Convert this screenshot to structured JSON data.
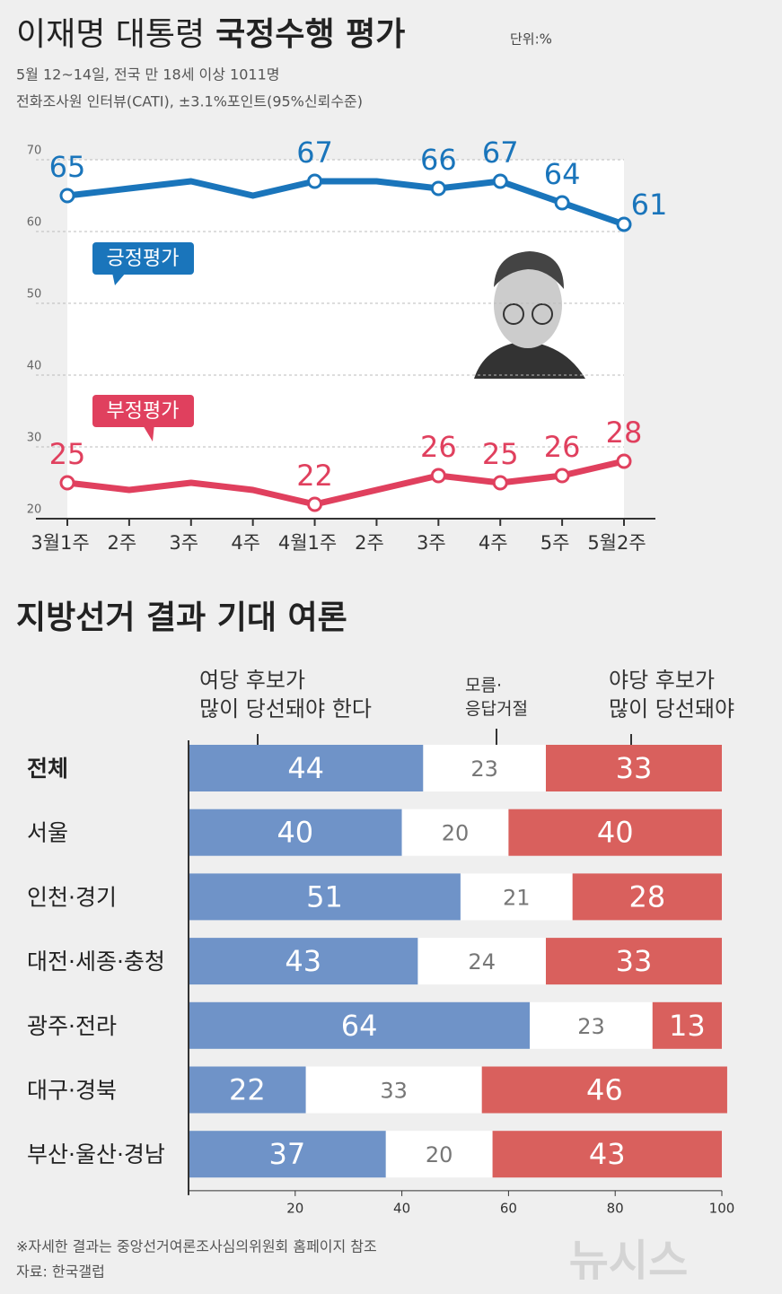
{
  "chart_data": [
    {
      "type": "line",
      "title": [
        "이재명 대통령",
        "국정수행 평가"
      ],
      "unit": "단위:%",
      "subtitle": [
        "5월 12~14일, 전국 만 18세 이상 1011명",
        "전화조사원 인터뷰(CATI), ±3.1%포인트(95%신뢰수준)"
      ],
      "categories": [
        "3월1주",
        "2주",
        "3주",
        "4주",
        "4월1주",
        "2주",
        "3주",
        "4주",
        "5주",
        "5월2주"
      ],
      "series": [
        {
          "name": "긍정평가",
          "color": "#1a75bb",
          "values": [
            65,
            66,
            67,
            65,
            67,
            67,
            66,
            67,
            64,
            61
          ],
          "value_labels": [
            "65",
            null,
            null,
            null,
            "67",
            null,
            "66",
            "67",
            "64",
            "61"
          ]
        },
        {
          "name": "부정평가",
          "color": "#e0405e",
          "values": [
            25,
            24,
            25,
            24,
            22,
            24,
            26,
            25,
            26,
            28
          ],
          "value_labels": [
            "25",
            null,
            null,
            null,
            "22",
            null,
            "26",
            "25",
            "26",
            "28"
          ]
        }
      ],
      "ylim": [
        20,
        70
      ],
      "yticks": [
        20,
        30,
        40,
        50,
        60,
        70
      ],
      "grid": true
    },
    {
      "type": "stacked_bar",
      "title": "지방선거 결과 기대 여론",
      "categories": [
        "전체",
        "서울",
        "인천·경기",
        "대전·세종·충청",
        "광주·전라",
        "대구·경북",
        "부산·울산·경남"
      ],
      "series": [
        {
          "name": "여당 후보가\n많이 당선돼야 한다",
          "color": "#6f93c8",
          "values": [
            44,
            40,
            51,
            43,
            64,
            22,
            37
          ]
        },
        {
          "name": "모름·\n응답거절",
          "color": "#ffffff",
          "values": [
            23,
            20,
            21,
            24,
            23,
            33,
            20
          ]
        },
        {
          "name": "야당 후보가\n많이 당선돼야",
          "color": "#d9605d",
          "values": [
            33,
            40,
            28,
            33,
            13,
            46,
            43
          ]
        }
      ],
      "xlim": [
        0,
        100
      ],
      "xticks": [
        20,
        40,
        60,
        80,
        100
      ]
    }
  ],
  "footer": {
    "note": "※자세한 결과는 중앙선거여론조사심의위원회 홈페이지 참조",
    "source": "자료: 한국갤럽",
    "logo": "뉴시스"
  }
}
